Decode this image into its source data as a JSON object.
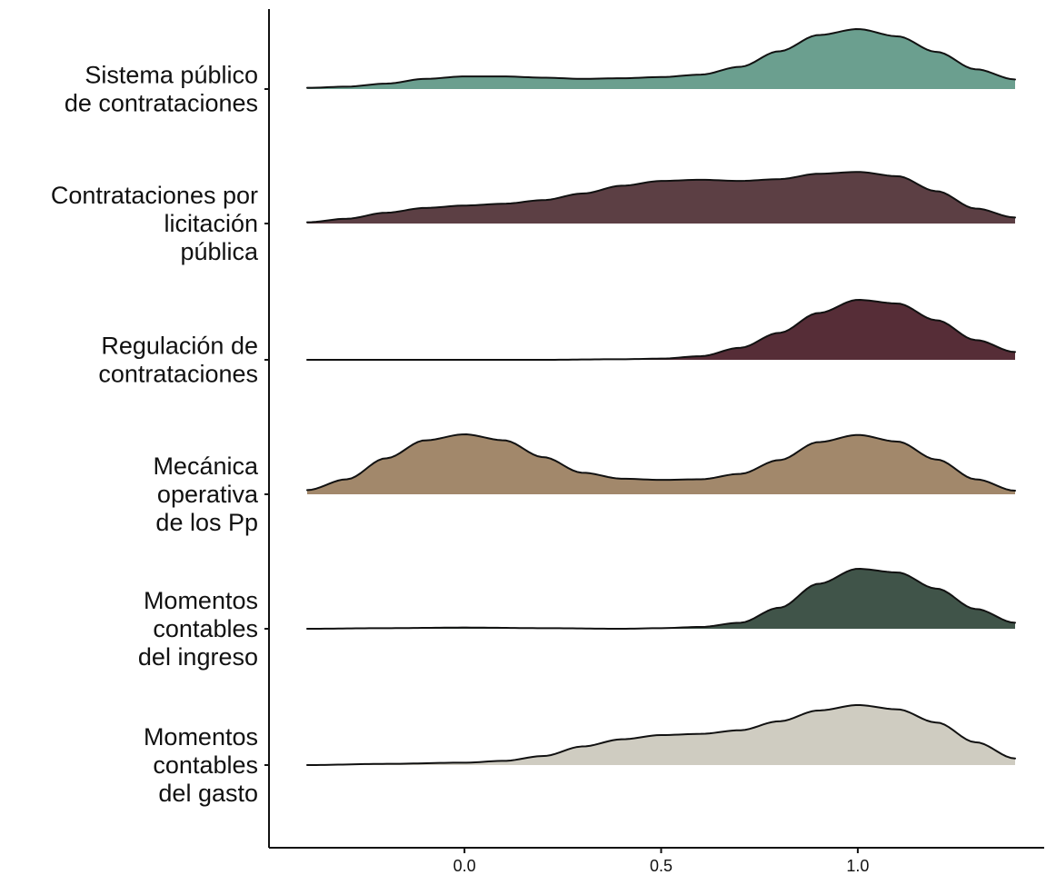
{
  "chart_data": {
    "type": "ridgeline",
    "title": "",
    "xlabel": "",
    "ylabel": "",
    "xlim": [
      -0.4,
      1.4
    ],
    "x_ticks": [
      0.0,
      0.5,
      1.0
    ],
    "x_tick_labels": [
      "0.0",
      "0.5",
      "1.0"
    ],
    "grid": false,
    "legend": "none",
    "series": [
      {
        "label_lines": [
          "Sistema público",
          "de contrataciones"
        ],
        "color": "#6b9f8f",
        "density": [
          [
            -0.4,
            0.02
          ],
          [
            -0.3,
            0.04
          ],
          [
            -0.2,
            0.09
          ],
          [
            -0.1,
            0.17
          ],
          [
            0.0,
            0.21
          ],
          [
            0.1,
            0.21
          ],
          [
            0.2,
            0.19
          ],
          [
            0.3,
            0.17
          ],
          [
            0.4,
            0.18
          ],
          [
            0.5,
            0.2
          ],
          [
            0.6,
            0.24
          ],
          [
            0.7,
            0.37
          ],
          [
            0.8,
            0.63
          ],
          [
            0.9,
            0.9
          ],
          [
            1.0,
            1.0
          ],
          [
            1.1,
            0.88
          ],
          [
            1.2,
            0.62
          ],
          [
            1.3,
            0.33
          ],
          [
            1.4,
            0.16
          ]
        ]
      },
      {
        "label_lines": [
          "Contrataciones por",
          "licitación",
          "pública"
        ],
        "color": "#5c3f44",
        "density": [
          [
            -0.4,
            0.02
          ],
          [
            -0.3,
            0.08
          ],
          [
            -0.2,
            0.18
          ],
          [
            -0.1,
            0.26
          ],
          [
            0.0,
            0.3
          ],
          [
            0.1,
            0.33
          ],
          [
            0.2,
            0.39
          ],
          [
            0.3,
            0.5
          ],
          [
            0.4,
            0.63
          ],
          [
            0.5,
            0.71
          ],
          [
            0.6,
            0.73
          ],
          [
            0.7,
            0.71
          ],
          [
            0.8,
            0.74
          ],
          [
            0.9,
            0.83
          ],
          [
            1.0,
            0.86
          ],
          [
            1.1,
            0.79
          ],
          [
            1.2,
            0.54
          ],
          [
            1.3,
            0.25
          ],
          [
            1.4,
            0.1
          ]
        ]
      },
      {
        "label_lines": [
          "Regulación de",
          "contrataciones"
        ],
        "color": "#562d37",
        "density": [
          [
            -0.4,
            0.0
          ],
          [
            -0.2,
            0.0
          ],
          [
            0.0,
            0.0
          ],
          [
            0.2,
            0.0
          ],
          [
            0.4,
            0.01
          ],
          [
            0.5,
            0.02
          ],
          [
            0.6,
            0.06
          ],
          [
            0.7,
            0.2
          ],
          [
            0.8,
            0.45
          ],
          [
            0.9,
            0.78
          ],
          [
            1.0,
            1.0
          ],
          [
            1.1,
            0.94
          ],
          [
            1.2,
            0.66
          ],
          [
            1.3,
            0.33
          ],
          [
            1.4,
            0.13
          ]
        ]
      },
      {
        "label_lines": [
          "Mecánica",
          "operativa",
          "de los Pp"
        ],
        "color": "#a2886b",
        "density": [
          [
            -0.4,
            0.07
          ],
          [
            -0.3,
            0.25
          ],
          [
            -0.2,
            0.6
          ],
          [
            -0.1,
            0.9
          ],
          [
            0.0,
            1.0
          ],
          [
            0.1,
            0.9
          ],
          [
            0.2,
            0.62
          ],
          [
            0.3,
            0.36
          ],
          [
            0.4,
            0.26
          ],
          [
            0.5,
            0.24
          ],
          [
            0.6,
            0.25
          ],
          [
            0.7,
            0.34
          ],
          [
            0.8,
            0.57
          ],
          [
            0.9,
            0.87
          ],
          [
            1.0,
            0.99
          ],
          [
            1.1,
            0.88
          ],
          [
            1.2,
            0.58
          ],
          [
            1.3,
            0.25
          ],
          [
            1.4,
            0.06
          ]
        ]
      },
      {
        "label_lines": [
          "Momentos",
          "contables",
          "del ingreso"
        ],
        "color": "#405449",
        "density": [
          [
            -0.4,
            0.0
          ],
          [
            -0.2,
            0.01
          ],
          [
            0.0,
            0.02
          ],
          [
            0.2,
            0.01
          ],
          [
            0.4,
            0.0
          ],
          [
            0.5,
            0.01
          ],
          [
            0.6,
            0.03
          ],
          [
            0.7,
            0.1
          ],
          [
            0.8,
            0.35
          ],
          [
            0.9,
            0.75
          ],
          [
            1.0,
            1.0
          ],
          [
            1.1,
            0.94
          ],
          [
            1.2,
            0.67
          ],
          [
            1.3,
            0.33
          ],
          [
            1.4,
            0.1
          ]
        ]
      },
      {
        "label_lines": [
          "Momentos",
          "contables",
          "del gasto"
        ],
        "color": "#cfccc1",
        "density": [
          [
            -0.4,
            0.0
          ],
          [
            -0.2,
            0.02
          ],
          [
            0.0,
            0.04
          ],
          [
            0.1,
            0.07
          ],
          [
            0.2,
            0.15
          ],
          [
            0.3,
            0.31
          ],
          [
            0.4,
            0.43
          ],
          [
            0.5,
            0.5
          ],
          [
            0.6,
            0.52
          ],
          [
            0.7,
            0.58
          ],
          [
            0.8,
            0.73
          ],
          [
            0.9,
            0.91
          ],
          [
            1.0,
            1.0
          ],
          [
            1.1,
            0.93
          ],
          [
            1.2,
            0.71
          ],
          [
            1.3,
            0.38
          ],
          [
            1.4,
            0.11
          ]
        ]
      }
    ]
  }
}
